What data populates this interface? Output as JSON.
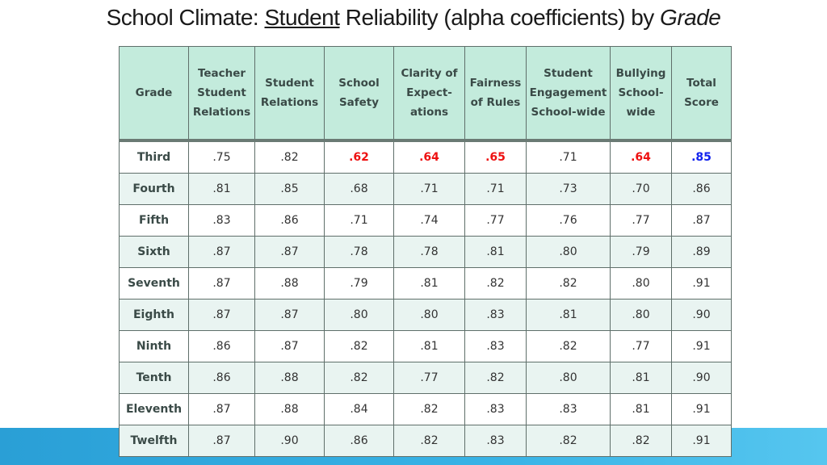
{
  "title": {
    "part1": "School Climate: ",
    "part2": "Student",
    "part3": " Reliability (alpha coefficients) by ",
    "part4": "Grade"
  },
  "table": {
    "headers": [
      [
        "Grade"
      ],
      [
        "Teacher",
        "Student",
        "Relations"
      ],
      [
        "Student",
        "Relations"
      ],
      [
        "School",
        "Safety"
      ],
      [
        "Clarity of",
        "Expect-",
        "ations"
      ],
      [
        "Fairness",
        "of Rules"
      ],
      [
        "Student",
        "Engagement",
        "School-wide"
      ],
      [
        "Bullying",
        "School-",
        "wide"
      ],
      [
        "Total",
        "Score"
      ]
    ],
    "rows": [
      {
        "grade": "Third",
        "values": [
          ".75",
          ".82",
          ".62",
          ".64",
          ".65",
          ".71",
          ".64",
          ".85"
        ]
      },
      {
        "grade": "Fourth",
        "values": [
          ".81",
          ".85",
          ".68",
          ".71",
          ".71",
          ".73",
          ".70",
          ".86"
        ]
      },
      {
        "grade": "Fifth",
        "values": [
          ".83",
          ".86",
          ".71",
          ".74",
          ".77",
          ".76",
          ".77",
          ".87"
        ]
      },
      {
        "grade": "Sixth",
        "values": [
          ".87",
          ".87",
          ".78",
          ".78",
          ".81",
          ".80",
          ".79",
          ".89"
        ]
      },
      {
        "grade": "Seventh",
        "values": [
          ".87",
          ".88",
          ".79",
          ".81",
          ".82",
          ".82",
          ".80",
          ".91"
        ]
      },
      {
        "grade": "Eighth",
        "values": [
          ".87",
          ".87",
          ".80",
          ".80",
          ".83",
          ".81",
          ".80",
          ".90"
        ]
      },
      {
        "grade": "Ninth",
        "values": [
          ".86",
          ".87",
          ".82",
          ".81",
          ".83",
          ".82",
          ".77",
          ".91"
        ]
      },
      {
        "grade": "Tenth",
        "values": [
          ".86",
          ".88",
          ".82",
          ".77",
          ".82",
          ".80",
          ".81",
          ".90"
        ]
      },
      {
        "grade": "Eleventh",
        "values": [
          ".87",
          ".88",
          ".84",
          ".82",
          ".83",
          ".83",
          ".81",
          ".91"
        ]
      },
      {
        "grade": "Twelfth",
        "values": [
          ".87",
          ".90",
          ".86",
          ".82",
          ".83",
          ".82",
          ".82",
          ".91"
        ]
      }
    ],
    "highlights": {
      "red": [
        [
          0,
          2
        ],
        [
          0,
          3
        ],
        [
          0,
          4
        ],
        [
          0,
          6
        ]
      ],
      "blue": [
        [
          0,
          7
        ]
      ]
    },
    "colors": {
      "header_bg": "#c3ebdc",
      "row_alt_bg": "#e9f4f1",
      "low_value": "#ee1111",
      "high_value": "#1122ee",
      "band": "#38b3e6"
    }
  }
}
